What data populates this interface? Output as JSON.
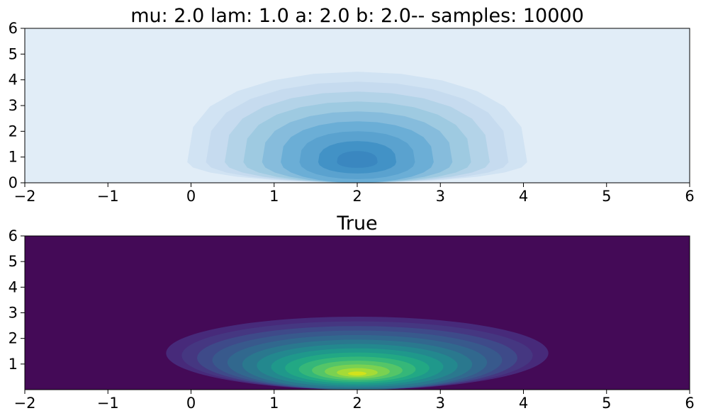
{
  "chart_data": [
    {
      "type": "contour",
      "title": "mu: 2.0 lam: 1.0 a: 2.0 b: 2.0-- samples: 10000",
      "xlabel": "",
      "ylabel": "",
      "xlim": [
        -2,
        6
      ],
      "ylim": [
        0,
        6
      ],
      "x_ticks": [
        -2,
        -1,
        0,
        1,
        2,
        3,
        4,
        5,
        6
      ],
      "x_tick_labels": [
        "−2",
        "−1",
        "0",
        "1",
        "2",
        "3",
        "4",
        "5",
        "6"
      ],
      "y_ticks": [
        0,
        1,
        2,
        3,
        4,
        5,
        6
      ],
      "y_tick_labels": [
        "0",
        "1",
        "2",
        "3",
        "4",
        "5",
        "6"
      ],
      "colormap": "Blues",
      "peak": [
        2.0,
        0.8
      ],
      "levels": 10,
      "grid": false
    },
    {
      "type": "contour",
      "title": "True",
      "xlabel": "",
      "ylabel": "",
      "xlim": [
        -2,
        6
      ],
      "ylim": [
        0,
        6
      ],
      "x_ticks": [
        -2,
        -1,
        0,
        1,
        2,
        3,
        4,
        5,
        6
      ],
      "x_tick_labels": [
        "−2",
        "−1",
        "0",
        "1",
        "2",
        "3",
        "4",
        "5",
        "6"
      ],
      "y_ticks": [
        1,
        2,
        3,
        4,
        5,
        6
      ],
      "y_tick_labels": [
        "1",
        "2",
        "3",
        "4",
        "5",
        "6"
      ],
      "colormap": "viridis",
      "peak": [
        2.0,
        0.6
      ],
      "levels": 14,
      "grid": false
    }
  ],
  "colors": {
    "blues_palette": [
      "#e1edf7",
      "#d1e3f3",
      "#c6dbef",
      "#b3d3e8",
      "#9ecae1",
      "#86bcdc",
      "#6baed6",
      "#5aa2cf",
      "#4292c6",
      "#3a87c0"
    ],
    "viridis_palette": [
      "#440a57",
      "#472a7a",
      "#453781",
      "#3e4a89",
      "#38598c",
      "#31688e",
      "#2a788e",
      "#23888e",
      "#1f988b",
      "#22a884",
      "#35b779",
      "#54c568",
      "#7ad151",
      "#a5db36",
      "#d2e21b",
      "#fde725"
    ]
  }
}
